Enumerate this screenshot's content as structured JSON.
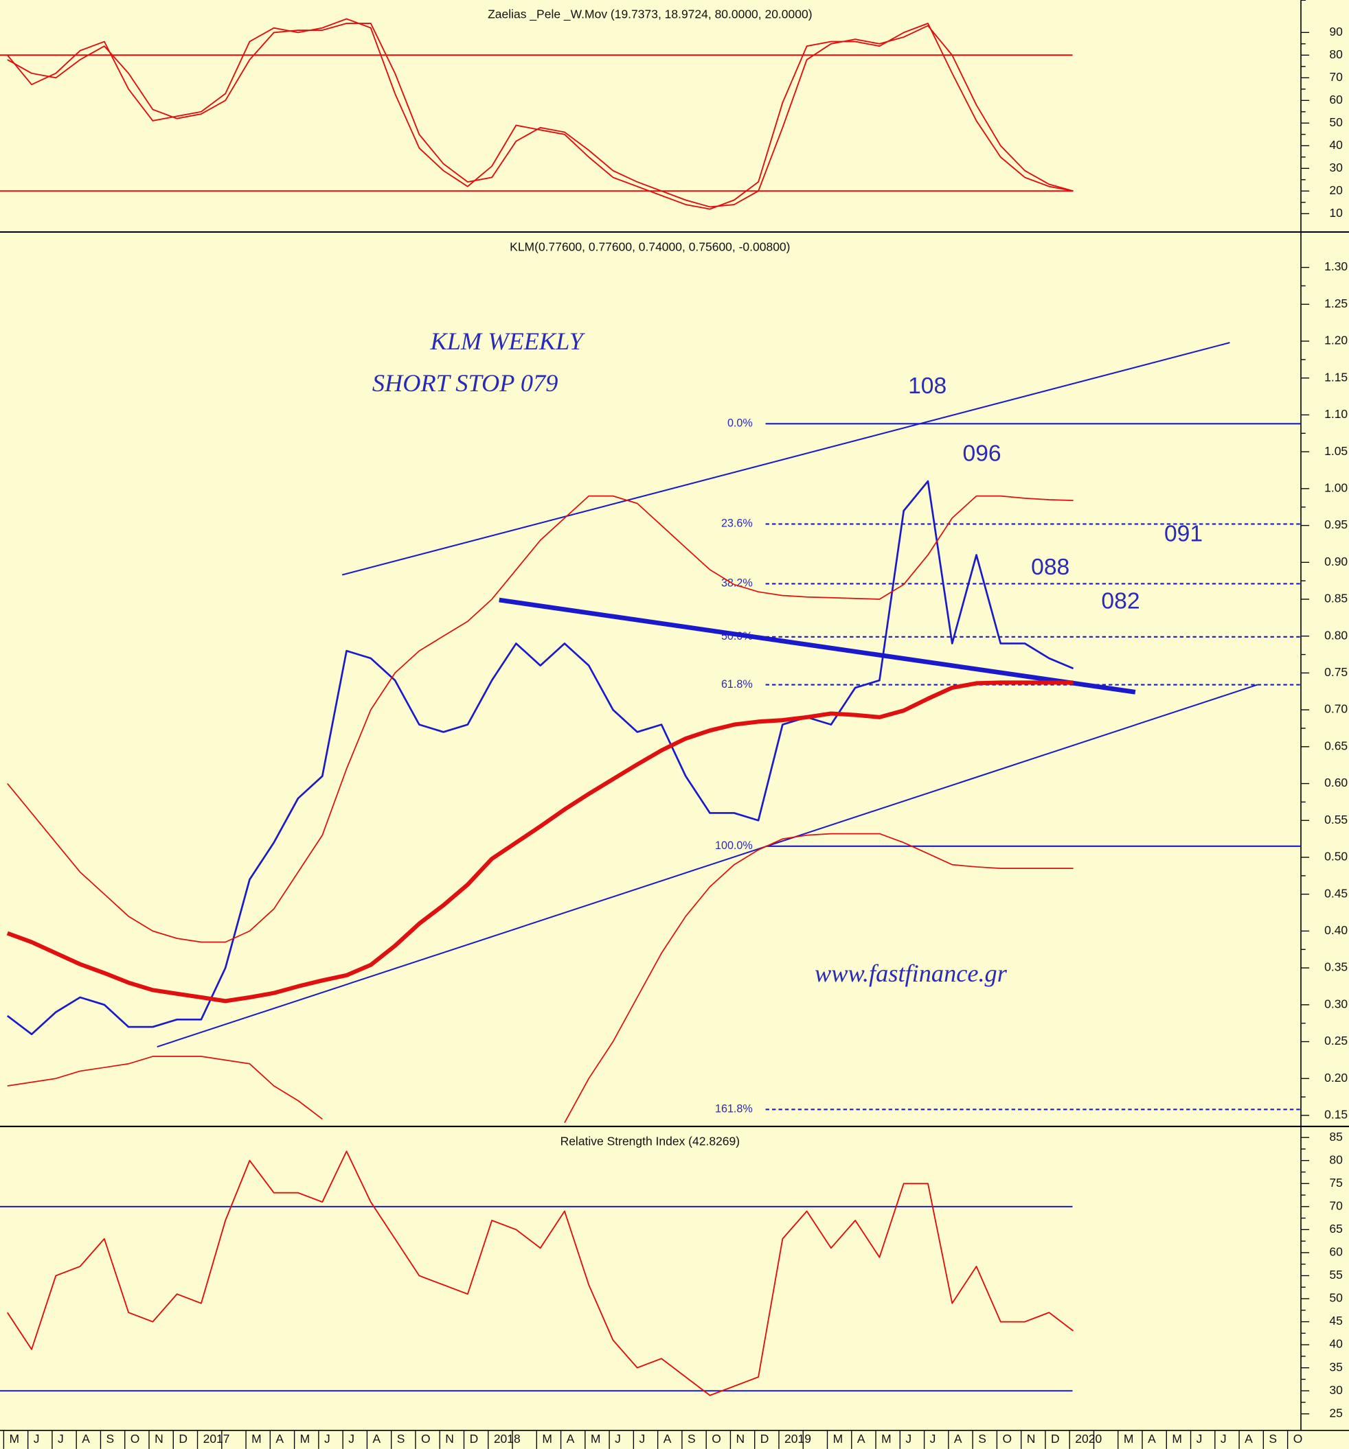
{
  "chart_data": [
    {
      "type": "line",
      "title": "Zaelias _Pele _W.Mov (19.7373, 18.9724, 80.0000, 20.0000)",
      "series": [
        {
          "color": "#e01010",
          "values": [
            80,
            67,
            72,
            82,
            86,
            65,
            51,
            53,
            55,
            63,
            86,
            92,
            90,
            92,
            96,
            92,
            63,
            39,
            29,
            22,
            31,
            49,
            47,
            45,
            35,
            26,
            22,
            18,
            14,
            12,
            16,
            24,
            59,
            84,
            86,
            86,
            84,
            90,
            94,
            72,
            51,
            35,
            26,
            22,
            20,
            null,
            null,
            null,
            null,
            null,
            null,
            null,
            null,
            null
          ]
        },
        {
          "color": "#e01010",
          "values": [
            78,
            72,
            70,
            78,
            84,
            72,
            56,
            52,
            54,
            60,
            78,
            90,
            91,
            91,
            94,
            94,
            72,
            45,
            32,
            24,
            26,
            42,
            48,
            46,
            38,
            29,
            24,
            20,
            16,
            13,
            14,
            20,
            48,
            78,
            85,
            87,
            85,
            88,
            93,
            80,
            58,
            40,
            29,
            23,
            20,
            null,
            null,
            null,
            null,
            null,
            null,
            null,
            null,
            null
          ]
        }
      ],
      "hlines": [
        {
          "value": 80,
          "color": "#e01010"
        },
        {
          "value": 20,
          "color": "#e01010"
        }
      ],
      "ylim": [
        1.9,
        104.3
      ],
      "yticks": [
        10,
        20,
        30,
        40,
        50,
        60,
        70,
        80,
        90
      ]
    },
    {
      "type": "line",
      "title": "KLM(0.77600, 0.77600, 0.74000, 0.75600, -0.00800)",
      "series": [
        {
          "color": "#1a1acc",
          "width": 2,
          "values": [
            0.285,
            0.26,
            0.29,
            0.31,
            0.3,
            0.27,
            0.27,
            0.28,
            0.28,
            0.35,
            0.47,
            0.52,
            0.58,
            0.61,
            0.78,
            0.77,
            0.74,
            0.68,
            0.67,
            0.68,
            0.74,
            0.79,
            0.76,
            0.79,
            0.76,
            0.7,
            0.67,
            0.68,
            0.61,
            0.56,
            0.56,
            0.55,
            0.68,
            0.69,
            0.68,
            0.73,
            0.74,
            0.97,
            1.01,
            0.79,
            0.91,
            0.79,
            0.79,
            0.77,
            0.756,
            null,
            null,
            null,
            null,
            null,
            null,
            null,
            null,
            null
          ]
        },
        {
          "color": "#e01010",
          "width": 4.5,
          "values": [
            0.397,
            0.385,
            0.37,
            0.355,
            0.343,
            0.33,
            0.32,
            0.315,
            0.31,
            0.305,
            0.31,
            0.316,
            0.325,
            0.333,
            0.34,
            0.354,
            0.38,
            0.41,
            0.435,
            0.463,
            0.498,
            0.52,
            0.542,
            0.565,
            0.586,
            0.606,
            0.626,
            0.645,
            0.661,
            0.672,
            0.68,
            0.684,
            0.686,
            0.69,
            0.695,
            0.693,
            0.69,
            0.699,
            0.715,
            0.73,
            0.736,
            0.737,
            0.737,
            0.737,
            0.737,
            null,
            null,
            null,
            null,
            null,
            null,
            null,
            null,
            null
          ]
        },
        {
          "color": "#e01010",
          "width": 1.3,
          "values": [
            0.6,
            0.56,
            0.52,
            0.48,
            0.45,
            0.42,
            0.4,
            0.39,
            0.385,
            0.385,
            0.4,
            0.43,
            0.48,
            0.53,
            0.62,
            0.7,
            0.75,
            0.78,
            0.8,
            0.82,
            0.85,
            0.89,
            0.93,
            0.96,
            0.99,
            0.99,
            0.98,
            0.95,
            0.92,
            0.89,
            0.87,
            0.86,
            0.855,
            0.853,
            0.852,
            0.851,
            0.85,
            0.87,
            0.91,
            0.96,
            0.99,
            0.99,
            0.987,
            0.985,
            0.984,
            null,
            null,
            null,
            null,
            null,
            null,
            null,
            null,
            null
          ]
        },
        {
          "color": "#e01010",
          "width": 1.3,
          "values": [
            0.19,
            0.195,
            0.2,
            0.21,
            0.215,
            0.22,
            0.23,
            0.23,
            0.23,
            0.225,
            0.22,
            0.19,
            0.17,
            0.145,
            null,
            null,
            null,
            null,
            null,
            null,
            null,
            null,
            null,
            0.14,
            0.2,
            0.25,
            0.31,
            0.37,
            0.42,
            0.46,
            0.49,
            0.51,
            0.525,
            0.53,
            0.532,
            0.532,
            0.532,
            0.52,
            0.505,
            0.49,
            0.487,
            0.485,
            0.485,
            0.485,
            0.485,
            null,
            null,
            null,
            null,
            null,
            null,
            null,
            null,
            null
          ]
        }
      ],
      "fib_levels": [
        {
          "label": "0.0%",
          "value": 1.088,
          "style": "solid"
        },
        {
          "label": "23.6%",
          "value": 0.952,
          "style": "dashed"
        },
        {
          "label": "38.2%",
          "value": 0.871,
          "style": "dashed"
        },
        {
          "label": "50.0%",
          "value": 0.799,
          "style": "dashed"
        },
        {
          "label": "61.8%",
          "value": 0.734,
          "style": "dashed"
        },
        {
          "label": "100.0%",
          "value": 0.515,
          "style": "solid"
        },
        {
          "label": "161.8%",
          "value": 0.158,
          "style": "dashed"
        }
      ],
      "trendlines": [
        {
          "x": [
            13.82,
            50.46
          ],
          "y": [
            0.883,
            1.198
          ],
          "width": 1.5
        },
        {
          "x": [
            6.18,
            51.6
          ],
          "y": [
            0.243,
            0.734
          ],
          "width": 1.5
        },
        {
          "x": [
            20.3,
            46.56
          ],
          "y": [
            0.849,
            0.724
          ],
          "width": 5
        }
      ],
      "trend_color": "#1a1acc",
      "annotations": [
        "KLM WEEKLY",
        "SHORT STOP 079",
        "108",
        "096",
        "091",
        "088",
        "082",
        "www.fastfinance.gr"
      ],
      "ylim": [
        0.135,
        1.348
      ],
      "yticks": [
        0.15,
        {
          "value": 0.2,
          "label": "0.20"
        },
        0.25,
        {
          "value": 0.3,
          "label": "0.30"
        },
        0.35,
        {
          "value": 0.4,
          "label": "0.40"
        },
        0.45,
        {
          "value": 0.5,
          "label": "0.50"
        },
        0.55,
        {
          "value": 0.6,
          "label": "0.60"
        },
        0.65,
        {
          "value": 0.7,
          "label": "0.70"
        },
        0.75,
        {
          "value": 0.8,
          "label": "0.80"
        },
        0.85,
        {
          "value": 0.9,
          "label": "0.90"
        },
        0.95,
        {
          "value": 1,
          "label": "1.00"
        },
        1.05,
        {
          "value": 1.1,
          "label": "1.10"
        },
        1.15,
        {
          "value": 1.2,
          "label": "1.20"
        },
        1.25,
        {
          "value": 1.3,
          "label": "1.30"
        }
      ]
    },
    {
      "type": "line",
      "title": "Relative Strength Index (42.8269)",
      "categories": [
        "M",
        "J",
        "J",
        "A",
        "S",
        "O",
        "N",
        "D",
        "2017",
        null,
        "M",
        "A",
        "M",
        "J",
        "J",
        "A",
        "S",
        "O",
        "N",
        "D",
        "2018",
        null,
        "M",
        "A",
        "M",
        "J",
        "J",
        "A",
        "S",
        "O",
        "N",
        "D",
        "2019",
        null,
        "M",
        "A",
        "M",
        "J",
        "J",
        "A",
        "S",
        "O",
        "N",
        "D",
        "2020",
        null,
        "M",
        "A",
        "M",
        "J",
        "J",
        "A",
        "S",
        "O"
      ],
      "series": [
        {
          "color": "#e01010",
          "values": [
            47,
            39,
            55,
            57,
            63,
            47,
            45,
            51,
            49,
            67,
            80,
            73,
            73,
            71,
            82,
            71,
            63,
            55,
            53,
            51,
            67,
            65,
            61,
            69,
            53,
            41,
            35,
            37,
            33,
            29,
            31,
            33,
            63,
            69,
            61,
            67,
            59,
            75,
            75,
            49,
            57,
            45,
            45,
            47,
            43,
            null,
            null,
            null,
            null,
            null,
            null,
            null,
            null,
            null
          ]
        }
      ],
      "hlines": [
        {
          "value": 70,
          "color": "#1a1acc"
        },
        {
          "value": 30,
          "color": "#1a1acc"
        }
      ],
      "ylim": [
        21.4,
        87.4
      ],
      "yticks": [
        25,
        30,
        35,
        40,
        45,
        50,
        55,
        60,
        65,
        70,
        75,
        80,
        85
      ]
    }
  ]
}
